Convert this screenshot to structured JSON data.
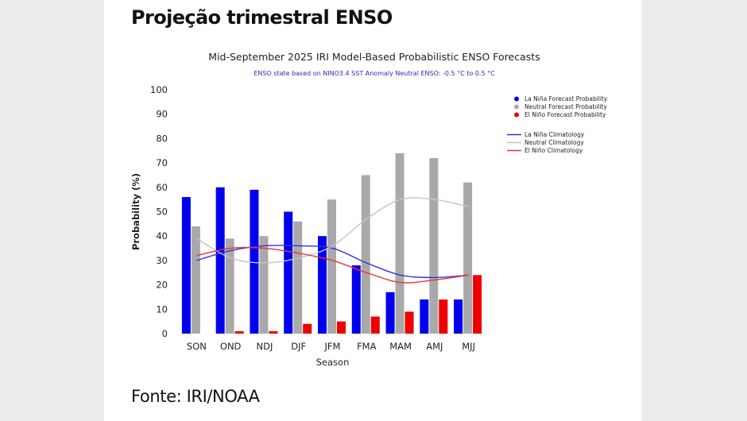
{
  "page": {
    "heading": "Projeção trimestral ENSO",
    "source": "Fonte: IRI/NOAA"
  },
  "chart_data": {
    "type": "bar",
    "title": "Mid-September 2025 IRI Model-Based Probabilistic ENSO Forecasts",
    "subtitle": "ENSO state based on NINO3.4 SST Anomaly Neutral ENSO: -0.5 °C to 0.5 °C",
    "xlabel": "Season",
    "ylabel": "Probability (%)",
    "ylim": [
      0,
      100
    ],
    "yticks": [
      0,
      10,
      20,
      30,
      40,
      50,
      60,
      70,
      80,
      90,
      100
    ],
    "categories": [
      "SON",
      "OND",
      "NDJ",
      "DJF",
      "JFM",
      "FMA",
      "MAM",
      "AMJ",
      "MJJ"
    ],
    "series": [
      {
        "name": "La Niña Forecast Probability",
        "color": "#0000ee",
        "values": [
          56,
          60,
          59,
          50,
          40,
          28,
          17,
          14,
          14
        ]
      },
      {
        "name": "Neutral Forecast Probability",
        "color": "#a9a9a9",
        "values": [
          44,
          39,
          40,
          46,
          55,
          65,
          74,
          72,
          62
        ]
      },
      {
        "name": "El Niño Forecast Probability",
        "color": "#ee0000",
        "values": [
          0,
          1,
          1,
          4,
          5,
          7,
          9,
          14,
          24
        ]
      }
    ],
    "climatology": [
      {
        "name": "La Niña Climatology",
        "color": "#3333dd",
        "values": [
          30,
          34,
          36,
          36,
          35,
          29,
          24,
          23,
          24
        ]
      },
      {
        "name": "Neutral Climatology",
        "color": "#c4c4c4",
        "values": [
          39,
          31,
          29,
          31,
          36,
          47,
          55,
          55,
          52
        ]
      },
      {
        "name": "El Niño Climatology",
        "color": "#ee3333",
        "values": [
          32,
          35,
          35,
          33,
          30,
          25,
          21,
          22,
          24
        ]
      }
    ],
    "legend_position": "top-right",
    "grid": false
  }
}
